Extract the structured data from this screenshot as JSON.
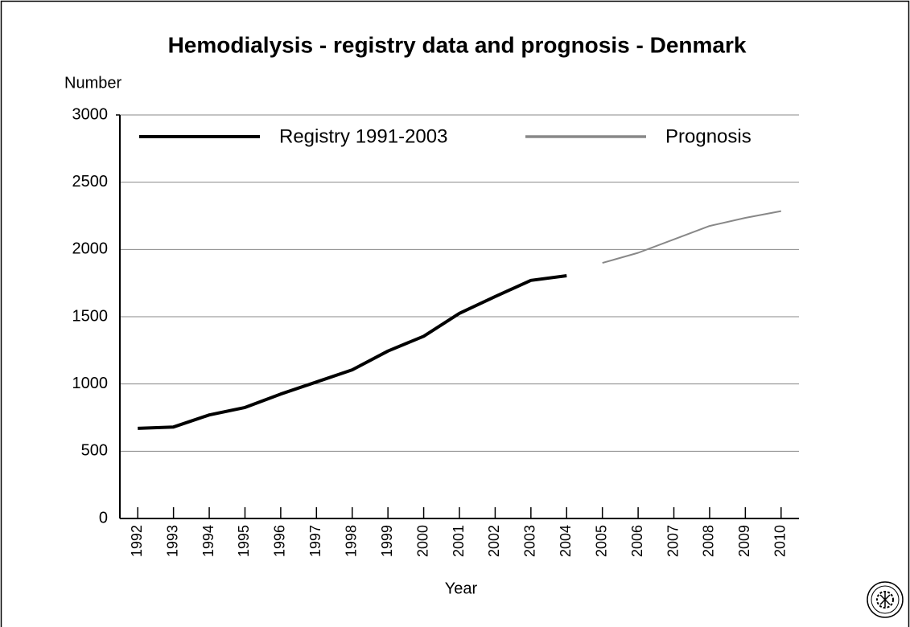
{
  "chart_data": {
    "type": "line",
    "title": "Hemodialysis - registry data and prognosis - Denmark",
    "y_label": "Number",
    "x_label": "Year",
    "categories": [
      "1992",
      "1993",
      "1994",
      "1995",
      "1996",
      "1997",
      "1998",
      "1999",
      "2000",
      "2001",
      "2002",
      "2003",
      "2004",
      "2005",
      "2006",
      "2007",
      "2008",
      "2009",
      "2010"
    ],
    "series": [
      {
        "name": "Registry 1991-2003",
        "color": "#000000",
        "width": 4,
        "values": [
          670,
          680,
          770,
          825,
          925,
          1015,
          1105,
          1245,
          1355,
          1525,
          1650,
          1770,
          1805,
          null,
          null,
          null,
          null,
          null,
          null
        ]
      },
      {
        "name": "Prognosis",
        "color": "#888888",
        "width": 2,
        "values": [
          null,
          null,
          null,
          null,
          null,
          null,
          null,
          null,
          null,
          null,
          null,
          null,
          null,
          1900,
          1975,
          2075,
          2175,
          2235,
          2285
        ]
      }
    ],
    "ylim": [
      0,
      3000
    ],
    "yticks": [
      0,
      500,
      1000,
      1500,
      2000,
      2500,
      3000
    ],
    "grid": true,
    "legend": "top"
  }
}
